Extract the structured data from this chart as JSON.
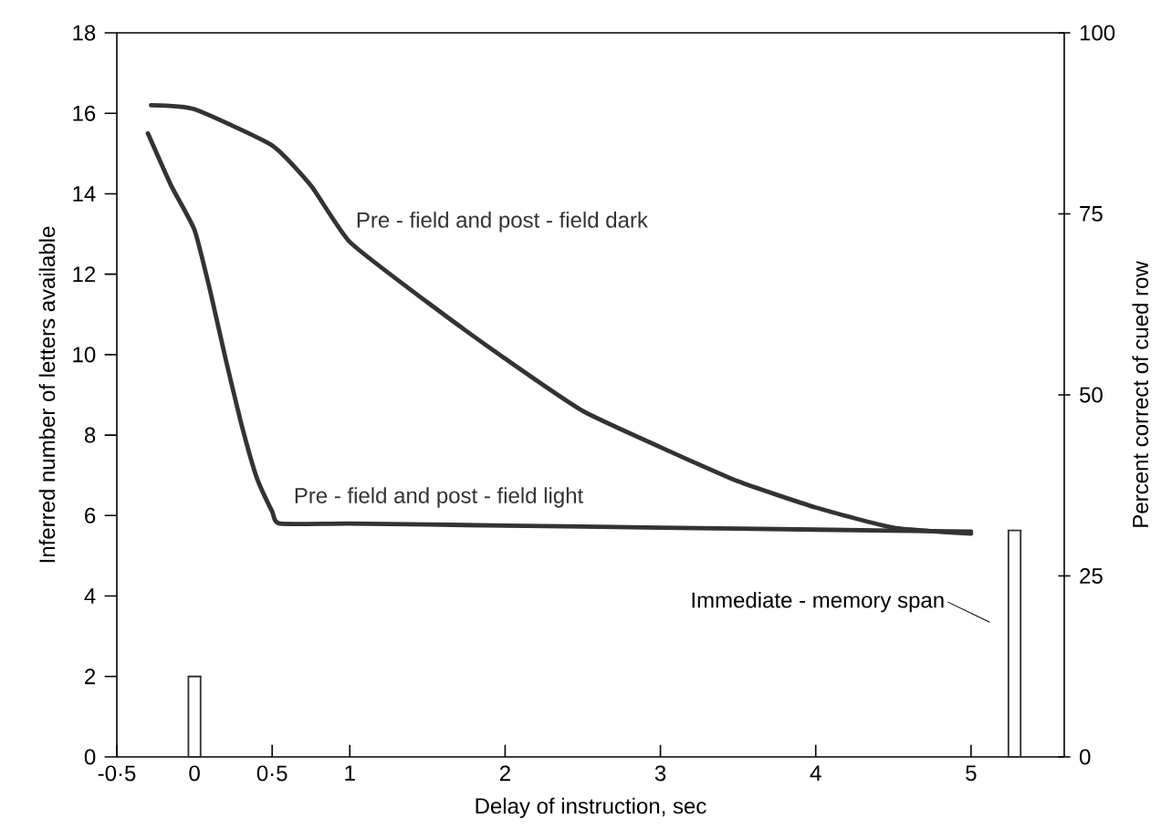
{
  "chart_data": {
    "type": "line",
    "xlabel": "Delay of instruction,    sec",
    "ylabel": "Inferred number of letters available",
    "y2label": "Percent   correct  of  cued  row",
    "xlim": [
      -0.5,
      5.6
    ],
    "xticks": [
      {
        "value": -0.5,
        "label": "-0·5"
      },
      0,
      {
        "value": 0.5,
        "label": "0·5"
      },
      1,
      2,
      3,
      4,
      5
    ],
    "ylim": [
      0,
      18
    ],
    "yticks": [
      0,
      2,
      4,
      6,
      8,
      10,
      12,
      14,
      16,
      18
    ],
    "y2lim": [
      0,
      100
    ],
    "y2ticks": [
      0,
      25,
      50,
      75,
      100
    ],
    "series": [
      {
        "name": "Pre - field and post - field dark",
        "color": "#333333",
        "x": [
          -0.28,
          0,
          0.5,
          0.75,
          1,
          1.5,
          2,
          2.5,
          3,
          3.5,
          4,
          4.5,
          5
        ],
        "values": [
          16.2,
          16.1,
          15.2,
          14.2,
          12.8,
          11.3,
          9.9,
          8.6,
          7.7,
          6.85,
          6.2,
          5.7,
          5.55
        ]
      },
      {
        "name": "Pre - field and post - field  light",
        "color": "#333333",
        "x": [
          -0.3,
          -0.15,
          0,
          0.1,
          0.2,
          0.3,
          0.4,
          0.5,
          0.55,
          1,
          2,
          3,
          4,
          5
        ],
        "values": [
          15.5,
          14.2,
          13.1,
          11.6,
          9.9,
          8.3,
          6.95,
          6.1,
          5.8,
          5.8,
          5.75,
          5.7,
          5.65,
          5.6
        ]
      },
      {
        "type": "bar",
        "color": "#333333",
        "x": [
          0,
          5.28
        ],
        "values": [
          2,
          5.63
        ]
      }
    ],
    "annotations": [
      "Immediate - memory span"
    ]
  }
}
